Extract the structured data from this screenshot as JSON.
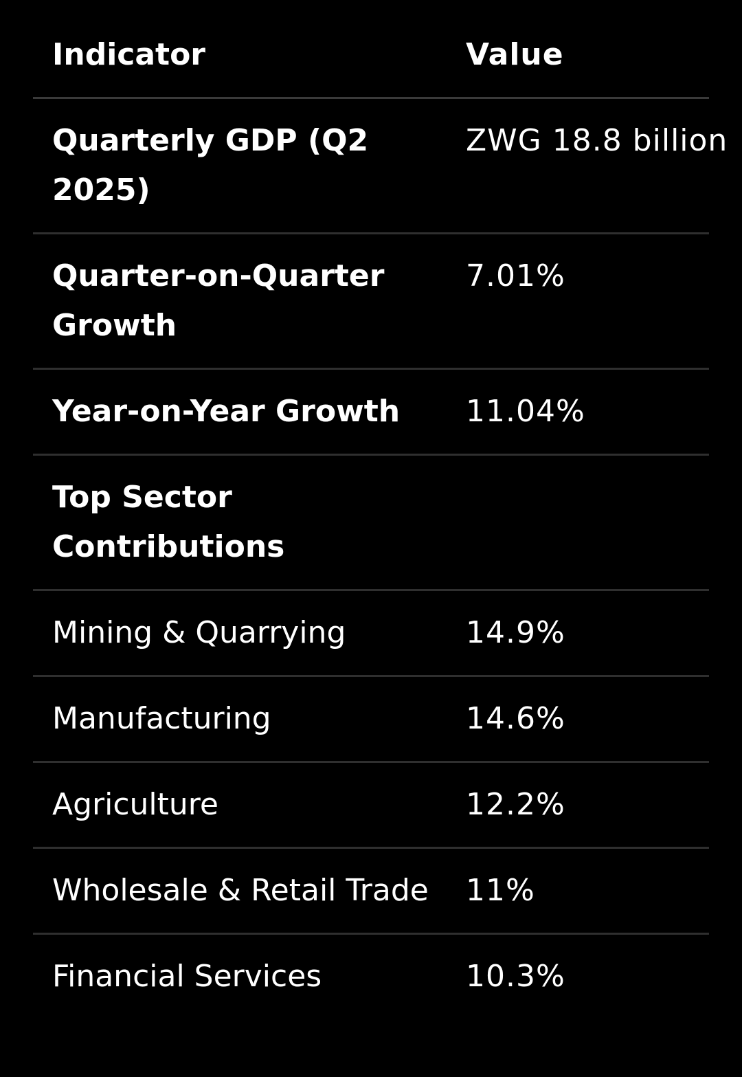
{
  "table": {
    "headers": {
      "indicator": "Indicator",
      "value": "Value"
    },
    "rows": [
      {
        "label": "Quarterly GDP (Q2 2025)",
        "value": "ZWG 18.8 billion",
        "kind": "indicator"
      },
      {
        "label": "Quarter-on-Quarter Growth",
        "value": "7.01%",
        "kind": "indicator"
      },
      {
        "label": "Year-on-Year Growth",
        "value": "11.04%",
        "kind": "indicator"
      },
      {
        "label": "Top Sector Contributions",
        "value": "",
        "kind": "indicator"
      },
      {
        "label": "Mining & Quarrying",
        "value": "14.9%",
        "kind": "sector"
      },
      {
        "label": "Manufacturing",
        "value": "14.6%",
        "kind": "sector"
      },
      {
        "label": "Agriculture",
        "value": "12.2%",
        "kind": "sector"
      },
      {
        "label": "Wholesale & Retail Trade",
        "value": "11%",
        "kind": "sector"
      },
      {
        "label": "Financial Services",
        "value": "10.3%",
        "kind": "sector"
      }
    ]
  }
}
